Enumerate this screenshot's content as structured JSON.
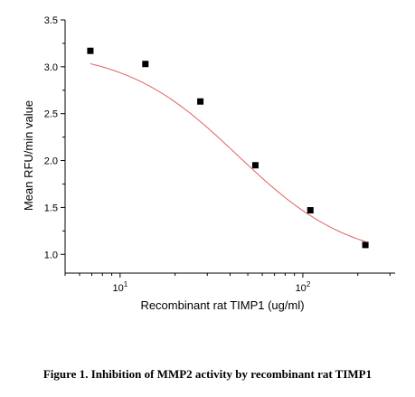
{
  "chart_data": {
    "type": "scatter",
    "title": "",
    "xlabel": "Recombinant rat TIMP1 (ug/ml)",
    "ylabel": "Mean RFU/min value",
    "xscale": "log",
    "xlim": [
      5,
      320
    ],
    "ylim": [
      0.8,
      3.5
    ],
    "x_ticks": [
      10,
      100
    ],
    "x_tick_labels": [
      {
        "base": "10",
        "exp": "1"
      },
      {
        "base": "10",
        "exp": "2"
      }
    ],
    "y_ticks": [
      1.0,
      1.5,
      2.0,
      2.5,
      3.0,
      3.5
    ],
    "y_tick_labels": [
      "1.0",
      "1.5",
      "2.0",
      "2.5",
      "3.0",
      "3.5"
    ],
    "grid": false,
    "legend": "none",
    "series": [
      {
        "marker": "square",
        "color": "#000000",
        "x": [
          6.875,
          13.75,
          27.5,
          55,
          110,
          220
        ],
        "y": [
          3.17,
          3.03,
          2.63,
          1.95,
          1.47,
          1.1
        ]
      }
    ],
    "fit_curve": {
      "color": "#e06060",
      "model": "4PL",
      "top": 3.19,
      "bottom": 0.92,
      "ec50": 44,
      "hill": 1.4
    }
  },
  "caption": "Figure 1. Inhibition of MMP2 activity by recombinant rat TIMP1"
}
